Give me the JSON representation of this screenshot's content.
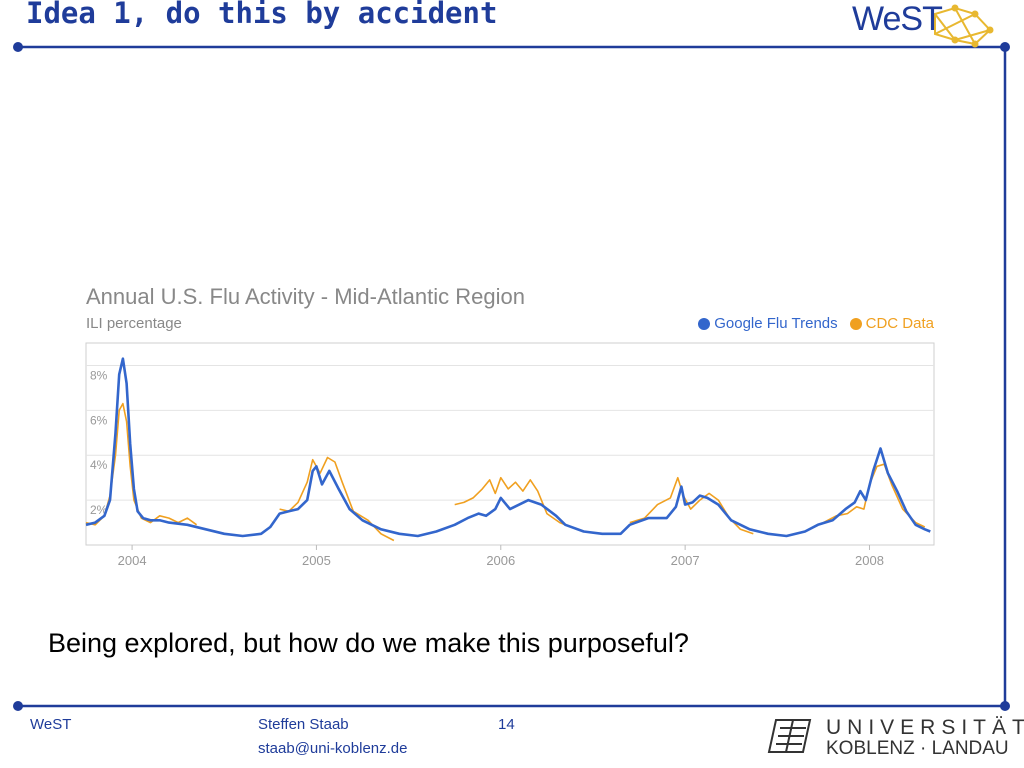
{
  "slide": {
    "title": "Idea 1, do this by accident",
    "caption": "Being explored, but how do we make this purposeful?",
    "logo_text": "WeST",
    "footer": {
      "left": "WeST",
      "author": "Steffen Staab",
      "email": "staab@uni-koblenz.de",
      "page": "14",
      "uni_line1": "UNIVERSITÄT",
      "uni_line2": "KOBLENZ · LANDAU"
    },
    "colors": {
      "accent": "#1f3c9a",
      "google": "#3366cc",
      "cdc": "#f0a020"
    }
  },
  "chart_data": {
    "type": "line",
    "title": "Annual U.S. Flu Activity - Mid-Atlantic Region",
    "ylabel": "ILI percentage",
    "ylim": [
      0,
      9
    ],
    "yticks": [
      "8%",
      "6%",
      "4%",
      "2%"
    ],
    "ytick_values": [
      8,
      6,
      4,
      2
    ],
    "xlim": [
      2003.75,
      2008.35
    ],
    "xticks": [
      "2004",
      "2005",
      "2006",
      "2007",
      "2008"
    ],
    "xtick_values": [
      2004,
      2005,
      2006,
      2007,
      2008
    ],
    "grid": "horizontal",
    "legend": "top-right",
    "series": [
      {
        "name": "Google Flu Trends",
        "points": [
          [
            2003.75,
            0.9
          ],
          [
            2003.8,
            1.0
          ],
          [
            2003.85,
            1.3
          ],
          [
            2003.88,
            2.0
          ],
          [
            2003.91,
            5.0
          ],
          [
            2003.93,
            7.6
          ],
          [
            2003.95,
            8.3
          ],
          [
            2003.97,
            7.2
          ],
          [
            2003.99,
            4.5
          ],
          [
            2004.01,
            2.5
          ],
          [
            2004.03,
            1.5
          ],
          [
            2004.06,
            1.2
          ],
          [
            2004.1,
            1.1
          ],
          [
            2004.15,
            1.1
          ],
          [
            2004.2,
            1.0
          ],
          [
            2004.3,
            0.9
          ],
          [
            2004.4,
            0.7
          ],
          [
            2004.5,
            0.5
          ],
          [
            2004.6,
            0.4
          ],
          [
            2004.7,
            0.5
          ],
          [
            2004.75,
            0.8
          ],
          [
            2004.8,
            1.4
          ],
          [
            2004.85,
            1.5
          ],
          [
            2004.9,
            1.6
          ],
          [
            2004.95,
            2.0
          ],
          [
            2004.98,
            3.3
          ],
          [
            2005.0,
            3.5
          ],
          [
            2005.03,
            2.7
          ],
          [
            2005.07,
            3.3
          ],
          [
            2005.12,
            2.5
          ],
          [
            2005.18,
            1.6
          ],
          [
            2005.25,
            1.1
          ],
          [
            2005.35,
            0.7
          ],
          [
            2005.45,
            0.5
          ],
          [
            2005.55,
            0.4
          ],
          [
            2005.65,
            0.6
          ],
          [
            2005.75,
            0.9
          ],
          [
            2005.82,
            1.2
          ],
          [
            2005.88,
            1.4
          ],
          [
            2005.92,
            1.3
          ],
          [
            2005.97,
            1.6
          ],
          [
            2006.0,
            2.1
          ],
          [
            2006.05,
            1.6
          ],
          [
            2006.1,
            1.8
          ],
          [
            2006.15,
            2.0
          ],
          [
            2006.22,
            1.8
          ],
          [
            2006.3,
            1.3
          ],
          [
            2006.35,
            0.9
          ],
          [
            2006.45,
            0.6
          ],
          [
            2006.55,
            0.5
          ],
          [
            2006.65,
            0.5
          ],
          [
            2006.7,
            0.9
          ],
          [
            2006.8,
            1.2
          ],
          [
            2006.9,
            1.2
          ],
          [
            2006.95,
            1.7
          ],
          [
            2006.98,
            2.6
          ],
          [
            2007.0,
            1.8
          ],
          [
            2007.04,
            1.9
          ],
          [
            2007.08,
            2.2
          ],
          [
            2007.12,
            2.1
          ],
          [
            2007.18,
            1.8
          ],
          [
            2007.25,
            1.1
          ],
          [
            2007.35,
            0.7
          ],
          [
            2007.45,
            0.5
          ],
          [
            2007.55,
            0.4
          ],
          [
            2007.65,
            0.6
          ],
          [
            2007.72,
            0.9
          ],
          [
            2007.8,
            1.1
          ],
          [
            2007.87,
            1.6
          ],
          [
            2007.92,
            1.9
          ],
          [
            2007.95,
            2.4
          ],
          [
            2007.98,
            2.0
          ],
          [
            2008.02,
            3.3
          ],
          [
            2008.06,
            4.3
          ],
          [
            2008.1,
            3.2
          ],
          [
            2008.15,
            2.4
          ],
          [
            2008.2,
            1.5
          ],
          [
            2008.25,
            0.9
          ],
          [
            2008.3,
            0.7
          ],
          [
            2008.33,
            0.6
          ]
        ]
      },
      {
        "name": "CDC Data",
        "points": [
          [
            2003.75,
            1.0
          ],
          [
            2003.8,
            0.9
          ],
          [
            2003.85,
            1.3
          ],
          [
            2003.88,
            2.2
          ],
          [
            2003.91,
            4.0
          ],
          [
            2003.93,
            6.0
          ],
          [
            2003.95,
            6.3
          ],
          [
            2003.97,
            5.5
          ],
          [
            2003.99,
            3.5
          ],
          [
            2004.01,
            2.0
          ],
          [
            2004.05,
            1.2
          ],
          [
            2004.1,
            1.0
          ],
          [
            2004.15,
            1.3
          ],
          [
            2004.2,
            1.2
          ],
          [
            2004.25,
            1.0
          ],
          [
            2004.3,
            1.2
          ],
          [
            2004.35,
            0.9
          ],
          [
            2004.8,
            1.6
          ],
          [
            2004.85,
            1.5
          ],
          [
            2004.9,
            1.9
          ],
          [
            2004.95,
            2.8
          ],
          [
            2004.98,
            3.8
          ],
          [
            2005.02,
            3.2
          ],
          [
            2005.06,
            3.9
          ],
          [
            2005.1,
            3.7
          ],
          [
            2005.14,
            2.8
          ],
          [
            2005.2,
            1.5
          ],
          [
            2005.28,
            1.1
          ],
          [
            2005.35,
            0.5
          ],
          [
            2005.42,
            0.2
          ],
          [
            2005.75,
            1.8
          ],
          [
            2005.8,
            1.9
          ],
          [
            2005.85,
            2.1
          ],
          [
            2005.9,
            2.5
          ],
          [
            2005.94,
            2.9
          ],
          [
            2005.97,
            2.3
          ],
          [
            2006.0,
            3.0
          ],
          [
            2006.04,
            2.5
          ],
          [
            2006.08,
            2.8
          ],
          [
            2006.12,
            2.4
          ],
          [
            2006.16,
            2.9
          ],
          [
            2006.2,
            2.4
          ],
          [
            2006.25,
            1.4
          ],
          [
            2006.32,
            1.0
          ],
          [
            2006.38,
            0.8
          ],
          [
            2006.7,
            1.0
          ],
          [
            2006.78,
            1.2
          ],
          [
            2006.85,
            1.8
          ],
          [
            2006.92,
            2.1
          ],
          [
            2006.96,
            3.0
          ],
          [
            2006.99,
            2.2
          ],
          [
            2007.03,
            1.6
          ],
          [
            2007.08,
            2.0
          ],
          [
            2007.13,
            2.3
          ],
          [
            2007.18,
            2.0
          ],
          [
            2007.24,
            1.2
          ],
          [
            2007.3,
            0.7
          ],
          [
            2007.37,
            0.5
          ],
          [
            2007.75,
            1.0
          ],
          [
            2007.82,
            1.3
          ],
          [
            2007.88,
            1.4
          ],
          [
            2007.93,
            1.7
          ],
          [
            2007.97,
            1.6
          ],
          [
            2008.0,
            2.7
          ],
          [
            2008.04,
            3.5
          ],
          [
            2008.08,
            3.6
          ],
          [
            2008.12,
            2.7
          ],
          [
            2008.18,
            1.6
          ],
          [
            2008.25,
            1.0
          ],
          [
            2008.3,
            0.8
          ]
        ]
      }
    ]
  }
}
